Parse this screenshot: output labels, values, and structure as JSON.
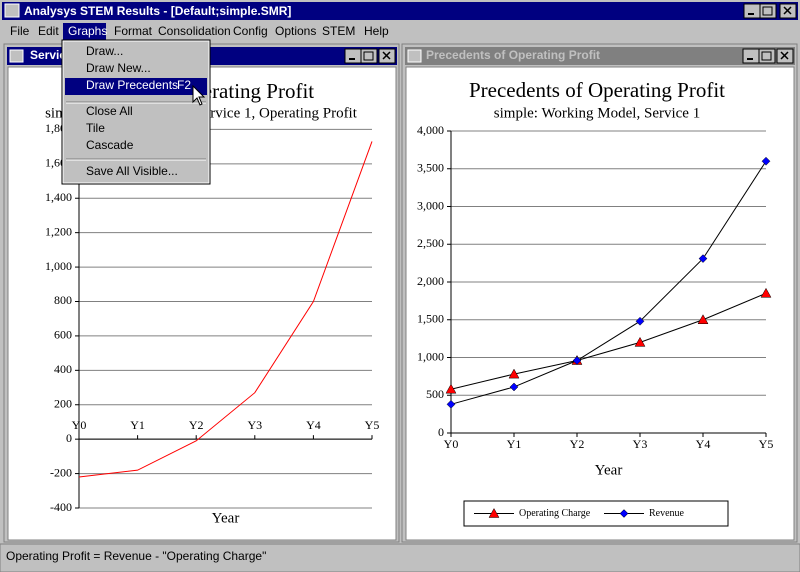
{
  "app": {
    "title": "Analysys STEM Results - [Default;simple.SMR]"
  },
  "menu": [
    "File",
    "Edit",
    "Graphs",
    "Format",
    "Consolidation",
    "Config",
    "Options",
    "STEM",
    "Help"
  ],
  "graphs_menu": [
    [
      "Draw...",
      "Draw New...",
      "Draw Precedents"
    ],
    [
      "Close All",
      "Tile",
      "Cascade"
    ],
    [
      "Save All Visible..."
    ]
  ],
  "shortcut": "F2",
  "windows": [
    {
      "title": "Service 1, Operating Profit"
    },
    {
      "title": "Precedents of Operating Profit"
    }
  ],
  "chart_data": [
    {
      "type": "line",
      "title": "Service 1, Operating Profit",
      "subtitle": "simple: Working Model, Service 1, Operating Profit",
      "x_label": "Year",
      "categories": [
        "Y0",
        "Y1",
        "Y2",
        "Y3",
        "Y4",
        "Y5"
      ],
      "values": [
        -220,
        -180,
        -10,
        270,
        800,
        1730
      ],
      "color": "#ff0000",
      "ylim": [
        -400,
        1800
      ],
      "yticks": [
        -400,
        -200,
        0,
        200,
        400,
        600,
        800,
        {
          "value": 1000,
          "label": "1,000"
        },
        {
          "value": 1200,
          "label": "1,200"
        },
        {
          "value": 1400,
          "label": "1,400"
        },
        {
          "value": 1600,
          "label": "1,600"
        },
        {
          "value": 1800,
          "label": "1,800"
        }
      ],
      "grid": true
    },
    {
      "type": "line",
      "title": "Precedents of Operating Profit",
      "subtitle": "simple: Working Model, Service 1",
      "x_label": "Year",
      "categories": [
        "Y0",
        "Y1",
        "Y2",
        "Y3",
        "Y4",
        "Y5"
      ],
      "series": [
        {
          "name": "Operating Charge",
          "color": "#ff0000",
          "marker": "triangle",
          "values": [
            580,
            780,
            960,
            1200,
            1500,
            1850
          ]
        },
        {
          "name": "Revenue",
          "color": "#0000ff",
          "marker": "diamond",
          "values": [
            380,
            610,
            960,
            1480,
            2310,
            3600
          ]
        }
      ],
      "line_color": "#000000",
      "ylim": [
        0,
        4000
      ],
      "yticks": [
        0,
        500,
        {
          "value": 1000,
          "label": "1,000"
        },
        {
          "value": 1500,
          "label": "1,500"
        },
        {
          "value": 2000,
          "label": "2,000"
        },
        {
          "value": 2500,
          "label": "2,500"
        },
        {
          "value": 3000,
          "label": "3,000"
        },
        {
          "value": 3500,
          "label": "3,500"
        },
        {
          "value": 4000,
          "label": "4,000"
        }
      ],
      "grid": true,
      "legend": "bottom"
    }
  ],
  "status": "Operating Profit = Revenue - \"Operating Charge\""
}
